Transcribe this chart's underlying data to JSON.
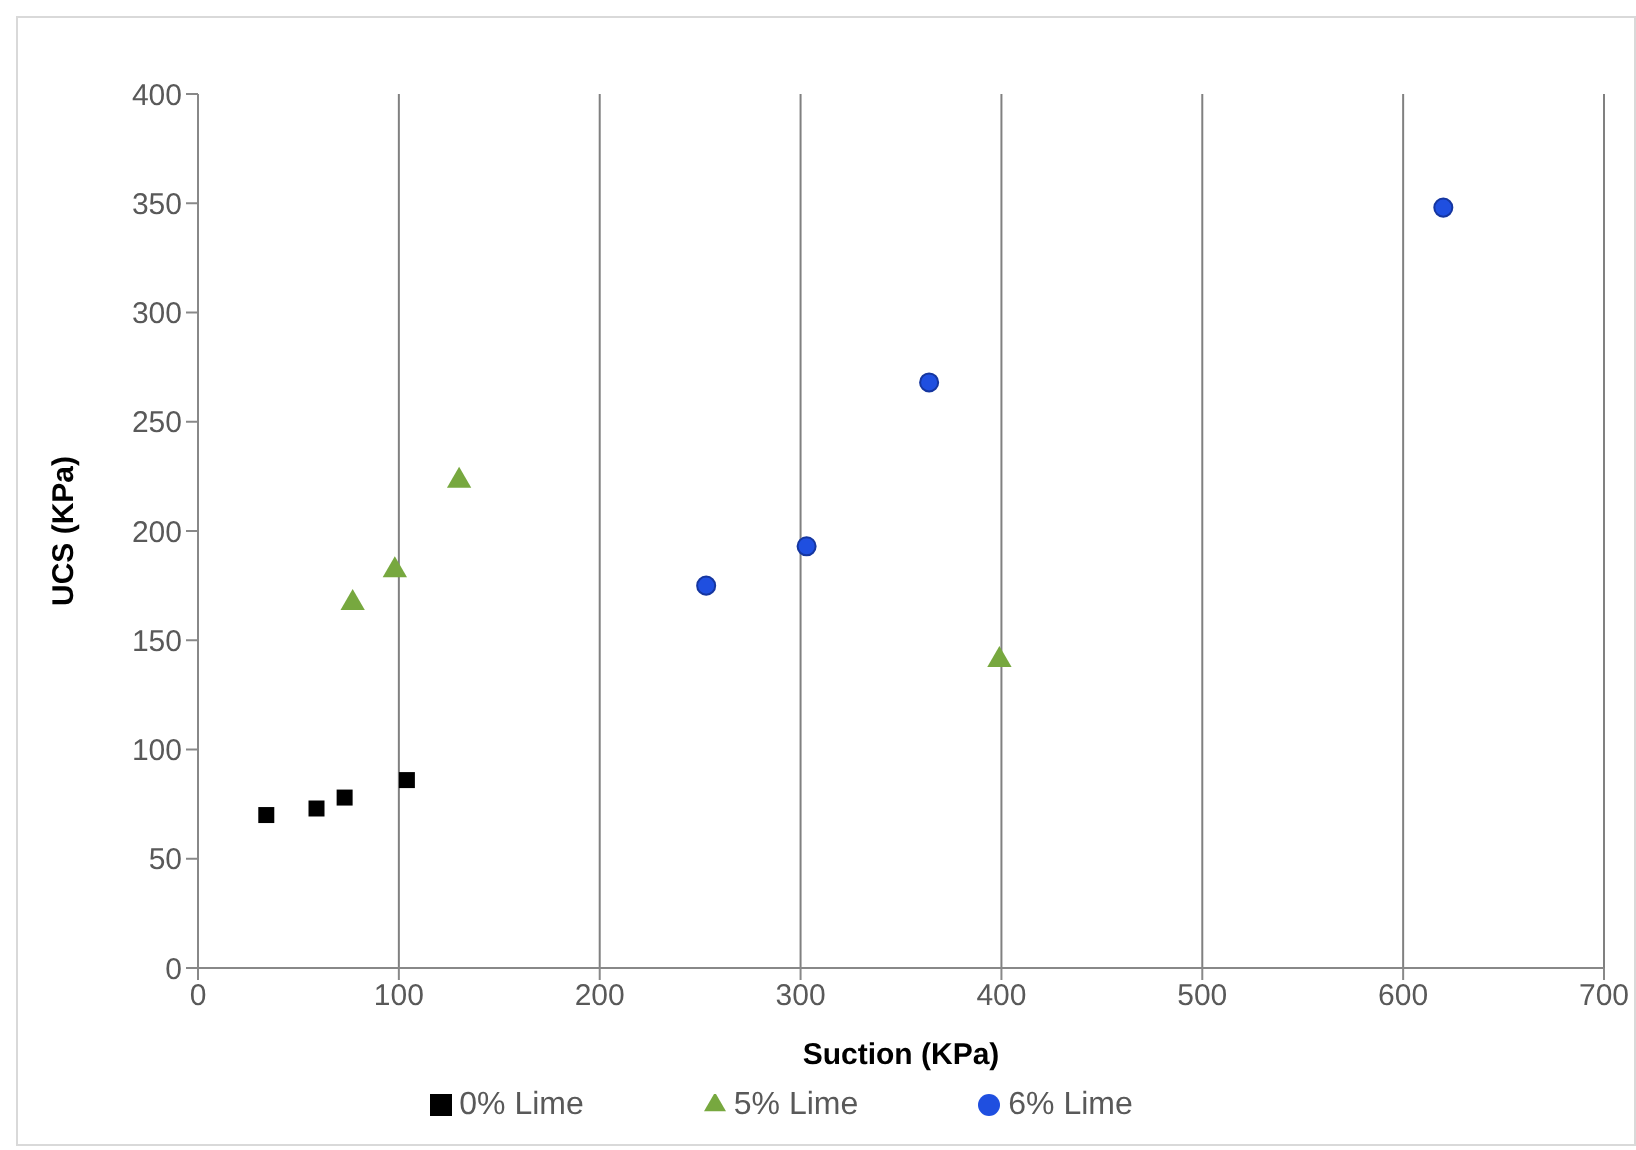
{
  "chart_data": {
    "type": "scatter",
    "xlabel": "Suction (KPa)",
    "ylabel": "UCS (KPa)",
    "xlim": [
      0,
      700
    ],
    "xticks": [
      0,
      100,
      200,
      300,
      400,
      500,
      600,
      700
    ],
    "ylim": [
      0,
      400
    ],
    "yticks": [
      0,
      50,
      100,
      150,
      200,
      250,
      300,
      350,
      400
    ],
    "grid": "x",
    "legend": "bottom",
    "series": [
      {
        "name": "0% Lime",
        "color": "#000000",
        "marker": "square",
        "x": [
          34,
          59,
          73,
          104
        ],
        "values": [
          70,
          73,
          78,
          86
        ]
      },
      {
        "name": "5% Lime",
        "color": "#77a83f",
        "marker": "triangle",
        "x": [
          77,
          98,
          130,
          399
        ],
        "values": [
          167,
          182,
          223,
          141
        ]
      },
      {
        "name": "6% Lime",
        "color": "#1f4fe0",
        "marker": "circle",
        "x": [
          253,
          303,
          364,
          620
        ],
        "values": [
          175,
          193,
          268,
          348
        ]
      }
    ]
  }
}
